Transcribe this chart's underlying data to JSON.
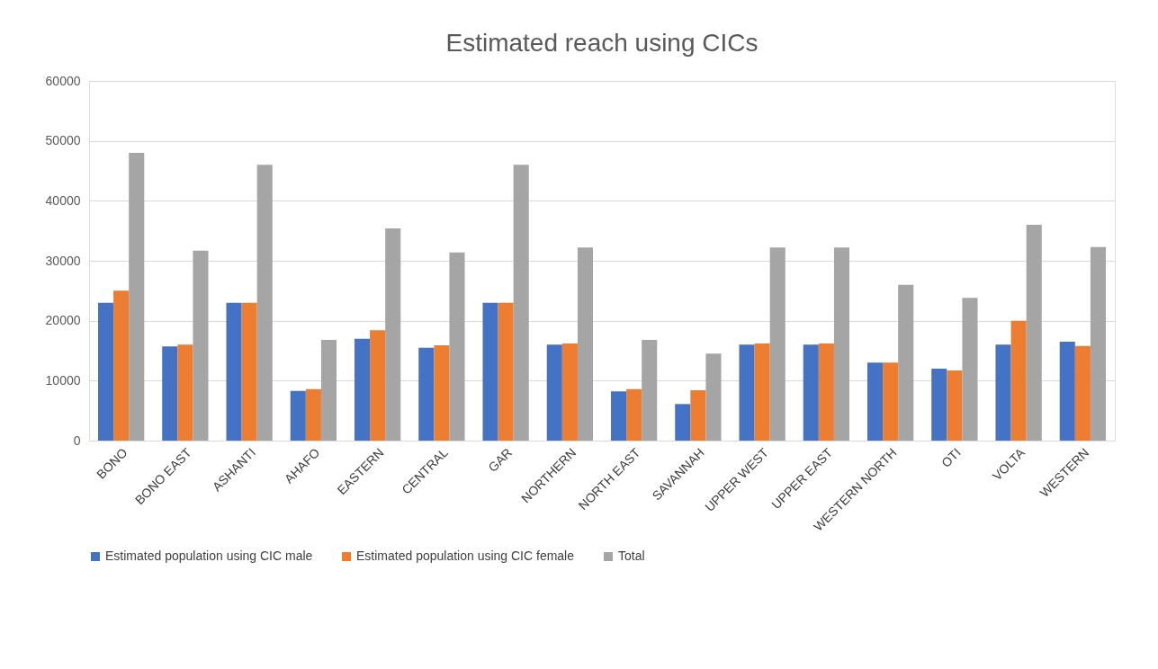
{
  "chart_data": {
    "type": "bar",
    "title": "Estimated reach using CICs",
    "categories": [
      "BONO",
      "BONO EAST",
      "ASHANTI",
      "AHAFO",
      "EASTERN",
      "CENTRAL",
      "GAR",
      "NORTHERN",
      "NORTH EAST",
      "SAVANNAH",
      "UPPER WEST",
      "UPPER EAST",
      "WESTERN NORTH",
      "OTI",
      "VOLTA",
      "WESTERN"
    ],
    "series": [
      {
        "name": "Estimated population using CIC male",
        "color": "#4472c4",
        "values": [
          23000,
          15700,
          23000,
          8300,
          17000,
          15500,
          23000,
          16000,
          8200,
          6100,
          16000,
          16000,
          13000,
          12000,
          16000,
          16500
        ]
      },
      {
        "name": "Estimated population using CIC female",
        "color": "#ed7d31",
        "values": [
          25000,
          16000,
          23000,
          8600,
          18400,
          15900,
          23000,
          16200,
          8600,
          8400,
          16200,
          16200,
          13000,
          11700,
          20000,
          15800
        ]
      },
      {
        "name": "Total",
        "color": "#a5a5a5",
        "values": [
          48000,
          31700,
          46000,
          16800,
          35400,
          31400,
          46000,
          32200,
          16800,
          14500,
          32200,
          32200,
          26000,
          23800,
          36000,
          32300
        ]
      }
    ],
    "ylim": [
      0,
      60000
    ],
    "yticks": [
      0,
      10000,
      20000,
      30000,
      40000,
      50000,
      60000
    ],
    "grid": "y",
    "legend": "bottom"
  }
}
